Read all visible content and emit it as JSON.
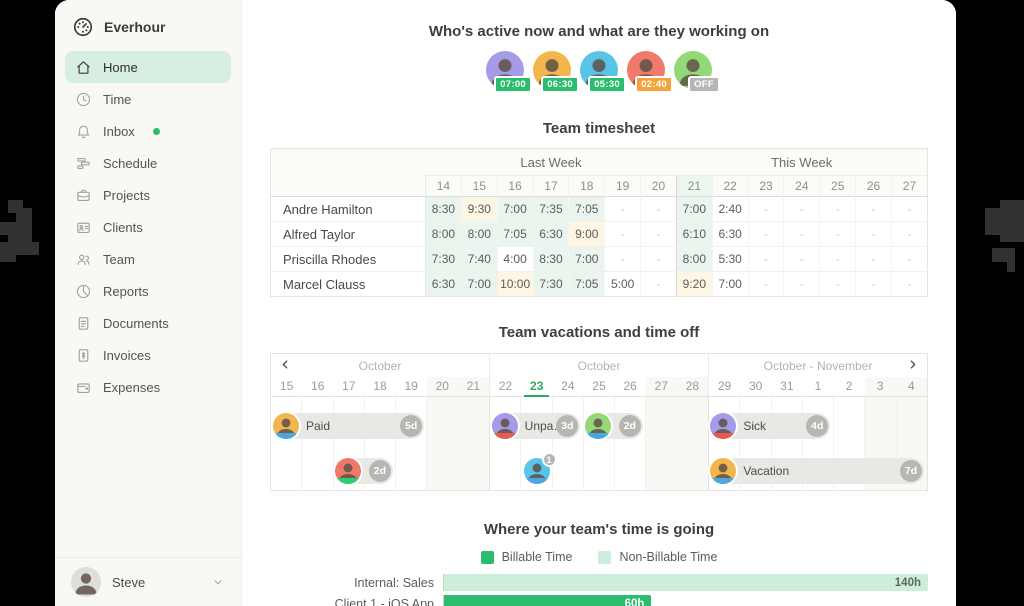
{
  "colors": {
    "accent": "#2abd6e",
    "home_highlight": "#d7efe1",
    "cell_green": "#ebf5ef",
    "cell_yellow": "#fdf6e5",
    "badge_green": "#2abd6e",
    "badge_orange": "#f2a33c",
    "badge_gray": "#b6b6b3",
    "billable": "#2abd6e",
    "non_billable": "#cdeeda",
    "avatar_palette": {
      "purple": "#a59ce8",
      "yellow": "#f1b74e",
      "cyan": "#5ac4e8",
      "red": "#ef7a6b",
      "green": "#94d978",
      "gray": "#dededa"
    },
    "status_palette": {
      "blue": "#4ba7dd",
      "red": "#e65a4f",
      "green": "#2ecc71"
    }
  },
  "sidebar": {
    "brand": "Everhour",
    "items": [
      {
        "label": "Home",
        "icon": "home-icon",
        "active": true
      },
      {
        "label": "Time",
        "icon": "clock-icon"
      },
      {
        "label": "Inbox",
        "icon": "bell-icon",
        "dot": true
      },
      {
        "label": "Schedule",
        "icon": "schedule-icon"
      },
      {
        "label": "Projects",
        "icon": "briefcase-icon"
      },
      {
        "label": "Clients",
        "icon": "idcard-icon"
      },
      {
        "label": "Team",
        "icon": "people-icon"
      },
      {
        "label": "Reports",
        "icon": "piechart-icon"
      },
      {
        "label": "Documents",
        "icon": "document-icon"
      },
      {
        "label": "Invoices",
        "icon": "invoice-icon"
      },
      {
        "label": "Expenses",
        "icon": "wallet-icon"
      }
    ],
    "user": {
      "name": "Steve"
    }
  },
  "active_now": {
    "title": "Who's active now and what are they working on",
    "members": [
      {
        "time": "07:00",
        "badge": "green",
        "avatar": "purple"
      },
      {
        "time": "06:30",
        "badge": "green",
        "avatar": "yellow"
      },
      {
        "time": "05:30",
        "badge": "green",
        "avatar": "cyan"
      },
      {
        "time": "02:40",
        "badge": "orange",
        "avatar": "red"
      },
      {
        "time": "OFF",
        "badge": "gray",
        "avatar": "green"
      }
    ]
  },
  "timesheet": {
    "title": "Team timesheet",
    "week_groups": [
      {
        "label": "Last Week",
        "days": [
          "14",
          "15",
          "16",
          "17",
          "18",
          "19",
          "20"
        ]
      },
      {
        "label": "This Week",
        "days": [
          "21",
          "22",
          "23",
          "24",
          "25",
          "26",
          "27"
        ]
      }
    ],
    "highlight_day": "21",
    "rows": [
      {
        "name": "Andre Hamilton",
        "cells": [
          {
            "v": "8:30",
            "bg": "g"
          },
          {
            "v": "9:30",
            "bg": "y"
          },
          {
            "v": "7:00",
            "bg": "g"
          },
          {
            "v": "7:35",
            "bg": "g"
          },
          {
            "v": "7:05",
            "bg": "g"
          },
          {
            "v": "-"
          },
          {
            "v": "-"
          },
          {
            "v": "7:00",
            "bg": "g"
          },
          {
            "v": "2:40"
          },
          {
            "v": "-"
          },
          {
            "v": "-"
          },
          {
            "v": "-"
          },
          {
            "v": "-"
          },
          {
            "v": "-"
          }
        ]
      },
      {
        "name": "Alfred Taylor",
        "cells": [
          {
            "v": "8:00",
            "bg": "g"
          },
          {
            "v": "8:00",
            "bg": "g"
          },
          {
            "v": "7:05",
            "bg": "g"
          },
          {
            "v": "6:30",
            "bg": "g"
          },
          {
            "v": "9:00",
            "bg": "y"
          },
          {
            "v": "-"
          },
          {
            "v": "-"
          },
          {
            "v": "6:10",
            "bg": "g"
          },
          {
            "v": "6:30"
          },
          {
            "v": "-"
          },
          {
            "v": "-"
          },
          {
            "v": "-"
          },
          {
            "v": "-"
          },
          {
            "v": "-"
          }
        ]
      },
      {
        "name": "Priscilla Rhodes",
        "cells": [
          {
            "v": "7:30",
            "bg": "g"
          },
          {
            "v": "7:40",
            "bg": "g"
          },
          {
            "v": "4:00"
          },
          {
            "v": "8:30",
            "bg": "g"
          },
          {
            "v": "7:00",
            "bg": "g"
          },
          {
            "v": "-"
          },
          {
            "v": "-"
          },
          {
            "v": "8:00",
            "bg": "g"
          },
          {
            "v": "5:30"
          },
          {
            "v": "-"
          },
          {
            "v": "-"
          },
          {
            "v": "-"
          },
          {
            "v": "-"
          },
          {
            "v": "-"
          }
        ]
      },
      {
        "name": "Marcel Clauss",
        "cells": [
          {
            "v": "6:30",
            "bg": "g"
          },
          {
            "v": "7:00",
            "bg": "g"
          },
          {
            "v": "10:00",
            "bg": "y"
          },
          {
            "v": "7:30",
            "bg": "g"
          },
          {
            "v": "7:05",
            "bg": "g"
          },
          {
            "v": "5:00"
          },
          {
            "v": "-"
          },
          {
            "v": "9:20",
            "bg": "y"
          },
          {
            "v": "7:00"
          },
          {
            "v": "-"
          },
          {
            "v": "-"
          },
          {
            "v": "-"
          },
          {
            "v": "-"
          },
          {
            "v": "-"
          }
        ]
      }
    ]
  },
  "vacations": {
    "title": "Team vacations and time off",
    "weeks": [
      {
        "month": "October",
        "days": [
          "15",
          "16",
          "17",
          "18",
          "19",
          "20",
          "21"
        ]
      },
      {
        "month": "October",
        "days": [
          "22",
          "23",
          "24",
          "25",
          "26",
          "27",
          "28"
        ]
      },
      {
        "month": "October - November",
        "days": [
          "29",
          "30",
          "31",
          "1",
          "2",
          "3",
          "4"
        ]
      }
    ],
    "today_day": "23",
    "weekend_day_indices": [
      5,
      6,
      12,
      13,
      19,
      20
    ],
    "entries": [
      {
        "kind": "bar",
        "label": "Paid",
        "duration": "5d",
        "row": 0,
        "start": 0,
        "span": 5,
        "avatar": "yellow",
        "status": "blue"
      },
      {
        "kind": "bar",
        "label": "Unpa…",
        "duration": "3d",
        "row": 0,
        "start": 7,
        "span": 3,
        "avatar": "purple",
        "status": "red"
      },
      {
        "kind": "bar",
        "label": "",
        "duration": "2d",
        "row": 0,
        "start": 10,
        "span": 2,
        "avatar": "green",
        "status": "blue"
      },
      {
        "kind": "bar",
        "label": "Sick",
        "duration": "4d",
        "row": 0,
        "start": 14,
        "span": 4,
        "avatar": "purple",
        "status": "red"
      },
      {
        "kind": "bar",
        "label": "",
        "duration": "2d",
        "row": 1,
        "start": 2,
        "span": 2,
        "avatar": "red",
        "status": "green"
      },
      {
        "kind": "avatar",
        "label": "",
        "count": "1",
        "row": 1,
        "start": 8,
        "span": 1,
        "avatar": "cyan",
        "status": "blue"
      },
      {
        "kind": "bar",
        "label": "Vacation",
        "duration": "7d",
        "row": 1,
        "start": 14,
        "span": 7,
        "avatar": "yellow",
        "status": "blue"
      }
    ]
  },
  "chart_data": {
    "type": "bar",
    "orientation": "horizontal",
    "title": "Where your team's time is going",
    "legend": [
      {
        "label": "Billable Time",
        "type": "billable"
      },
      {
        "label": "Non-Billable Time",
        "type": "non_billable"
      }
    ],
    "categories": [
      "Internal: Sales",
      "Client 1 - iOS App"
    ],
    "values": [
      140,
      60
    ],
    "value_labels": [
      "140h",
      "60h"
    ],
    "bar_types": [
      "non_billable",
      "billable"
    ],
    "xlim": [
      0,
      140
    ],
    "grid": false,
    "legend_position": "top"
  }
}
